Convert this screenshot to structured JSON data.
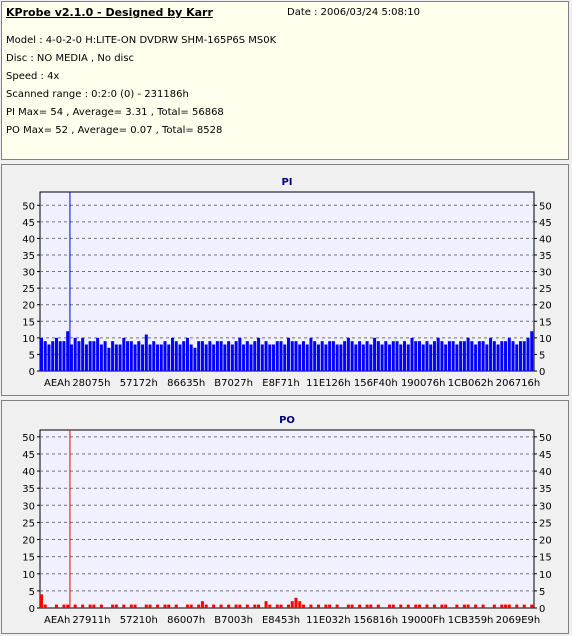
{
  "info": {
    "title": "KProbe v2.1.0 - Designed by Karr",
    "date": "Date : 2006/03/24 5:08:10",
    "model": "Model : 4-0-2-0 H:LITE-ON DVDRW SHM-165P6S MS0K",
    "disc": "Disc : NO MEDIA , No disc",
    "speed": "Speed : 4x",
    "scanned_range": "Scanned range : 0:2:0 (0) - 231186h",
    "pi_summary": "PI Max= 54 , Average= 3.31 , Total= 56868",
    "po_summary": "PO Max= 52 , Average= 0.07 , Total= 8528"
  },
  "colors": {
    "pi_bars": "#0000ff",
    "po_bars": "#ff0000",
    "plot_bg": "#f0f0ff"
  },
  "chart_data": [
    {
      "type": "bar",
      "title": "PI",
      "ylim": [
        0,
        54
      ],
      "yticks": [
        0,
        5,
        10,
        15,
        20,
        25,
        30,
        35,
        40,
        45,
        50
      ],
      "xlim": [
        0,
        231186
      ],
      "xtick_labels": [
        "AEAh",
        "28075h",
        "57172h",
        "86635h",
        "B7027h",
        "E8F71h",
        "11E126h",
        "156F40h",
        "190076h",
        "1CB062h",
        "206716h"
      ],
      "grid": true,
      "marker_x": 14000,
      "series": [
        {
          "values": [
            10,
            9,
            8,
            9,
            10,
            9,
            9,
            12,
            8,
            10,
            9,
            10,
            8,
            9,
            9,
            10,
            8,
            9,
            7,
            9,
            8,
            8,
            10,
            9,
            9,
            8,
            9,
            8,
            11,
            8,
            9,
            8,
            8,
            9,
            8,
            10,
            9,
            8,
            9,
            10,
            8,
            7,
            9,
            9,
            8,
            9,
            8,
            9,
            9,
            8,
            9,
            8,
            9,
            10,
            8,
            9,
            8,
            9,
            10,
            8,
            9,
            8,
            8,
            9,
            9,
            8,
            10,
            9,
            9,
            8,
            9,
            8,
            10,
            9,
            8,
            9,
            8,
            9,
            9,
            8,
            8,
            9,
            10,
            9,
            8,
            9,
            8,
            9,
            8,
            10,
            9,
            8,
            9,
            8,
            9,
            9,
            8,
            9,
            8,
            10,
            9,
            9,
            8,
            9,
            8,
            9,
            10,
            9,
            8,
            9,
            9,
            8,
            9,
            9,
            10,
            9,
            8,
            9,
            9,
            8,
            10,
            9,
            8,
            9,
            9,
            10,
            9,
            8,
            9,
            9,
            10,
            12
          ]
        }
      ]
    },
    {
      "type": "bar",
      "title": "PO",
      "ylim": [
        0,
        52
      ],
      "yticks": [
        0,
        5,
        10,
        15,
        20,
        25,
        30,
        35,
        40,
        45,
        50
      ],
      "xlim": [
        0,
        231186
      ],
      "xtick_labels": [
        "AEAh",
        "27911h",
        "57210h",
        "86007h",
        "B7003h",
        "E8453h",
        "11E032h",
        "156816h",
        "19000Fh",
        "1CB359h",
        "2069E9h"
      ],
      "grid": true,
      "marker_x": 14000,
      "series": [
        {
          "values": [
            4,
            1,
            0,
            0,
            1,
            0,
            1,
            1,
            0,
            1,
            0,
            1,
            0,
            1,
            1,
            0,
            1,
            0,
            0,
            1,
            1,
            0,
            1,
            0,
            1,
            1,
            0,
            0,
            1,
            1,
            0,
            1,
            0,
            1,
            1,
            0,
            1,
            0,
            0,
            1,
            1,
            0,
            1,
            2,
            1,
            0,
            1,
            0,
            1,
            0,
            1,
            0,
            1,
            1,
            0,
            1,
            0,
            1,
            1,
            0,
            2,
            1,
            0,
            1,
            1,
            0,
            1,
            2,
            3,
            2,
            1,
            0,
            1,
            0,
            1,
            0,
            1,
            1,
            0,
            1,
            0,
            0,
            1,
            1,
            0,
            1,
            0,
            1,
            1,
            0,
            1,
            0,
            0,
            1,
            1,
            0,
            1,
            0,
            1,
            0,
            1,
            1,
            0,
            1,
            0,
            1,
            0,
            1,
            1,
            0,
            0,
            1,
            0,
            1,
            1,
            0,
            1,
            0,
            1,
            0,
            0,
            1,
            0,
            1,
            1,
            1,
            0,
            1,
            0,
            1,
            0,
            1
          ]
        }
      ]
    }
  ]
}
